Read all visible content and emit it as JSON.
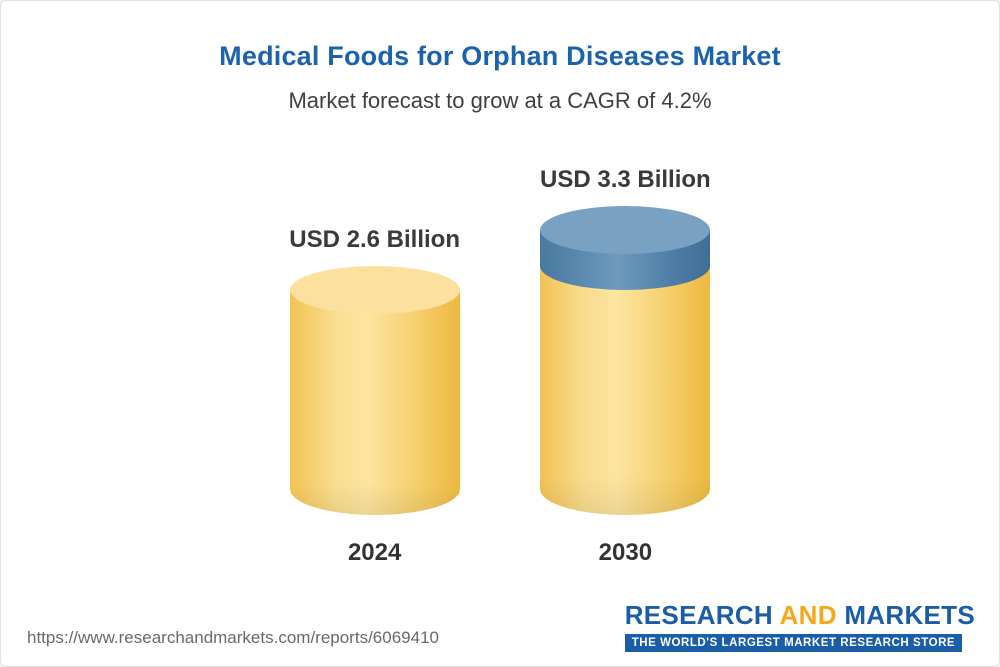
{
  "header": {
    "title": "Medical Foods for Orphan Diseases Market",
    "subtitle": "Market forecast to grow at a CAGR of 4.2%"
  },
  "chart_data": {
    "type": "bar",
    "categories": [
      "2024",
      "2030"
    ],
    "values": [
      2.6,
      3.3
    ],
    "value_labels": [
      "USD 2.6 Billion",
      "USD 3.3 Billion"
    ],
    "unit": "USD Billion",
    "title": "Medical Foods for Orphan Diseases Market",
    "subtitle": "Market forecast to grow at a CAGR of 4.2%",
    "cagr_percent": 4.2,
    "legend_position": "none",
    "grid": false,
    "colors": {
      "bar_base": "#F6CE6B",
      "growth_segment": "#4E7DA7",
      "title_text": "#1C63AD"
    },
    "notes": "3D cylinder bars; the 2030 bar shows the growth over 2024 as a blue segment on top"
  },
  "footer": {
    "url": "https://www.researchandmarkets.com/reports/6069410",
    "logo": {
      "part1": "RESEARCH",
      "part2": "AND",
      "part3": "MARKETS",
      "tagline": "THE WORLD'S LARGEST MARKET RESEARCH STORE"
    }
  }
}
